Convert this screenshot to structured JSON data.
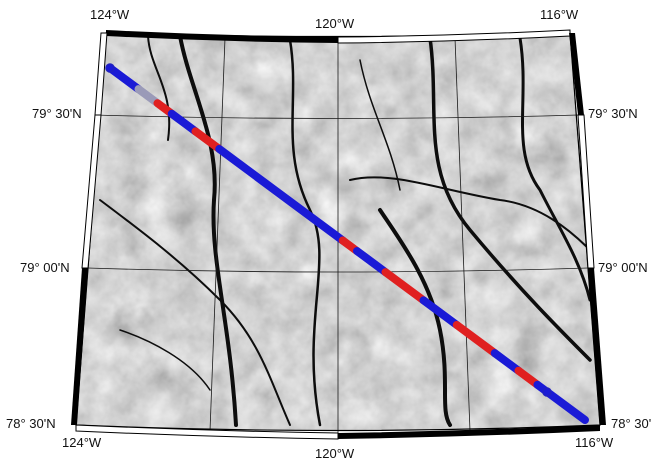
{
  "map": {
    "graticule": {
      "lon_labels": [
        "124°W",
        "120°W",
        "116°W"
      ],
      "lat_labels": [
        "79° 30'N",
        "79° 00'N",
        "78° 30'N"
      ],
      "lat_labels_right": [
        "79° 30'N",
        "79° 00'N",
        "78° 30'"
      ]
    },
    "colors": {
      "frame": "#000000",
      "gridline": "#1a1a1a",
      "track_primary": "#1a1ad6",
      "track_secondary": "#e02020",
      "background": "#ffffff"
    },
    "track": {
      "segments_along_track": [
        {
          "from": 0.0,
          "to": 0.06,
          "color": "blue"
        },
        {
          "from": 0.06,
          "to": 0.1,
          "color": "grey"
        },
        {
          "from": 0.1,
          "to": 0.13,
          "color": "red"
        },
        {
          "from": 0.13,
          "to": 0.18,
          "color": "blue"
        },
        {
          "from": 0.18,
          "to": 0.23,
          "color": "red"
        },
        {
          "from": 0.23,
          "to": 0.49,
          "color": "blue"
        },
        {
          "from": 0.49,
          "to": 0.52,
          "color": "red"
        },
        {
          "from": 0.52,
          "to": 0.58,
          "color": "blue"
        },
        {
          "from": 0.58,
          "to": 0.66,
          "color": "red"
        },
        {
          "from": 0.66,
          "to": 0.73,
          "color": "blue"
        },
        {
          "from": 0.73,
          "to": 0.81,
          "color": "red"
        },
        {
          "from": 0.81,
          "to": 0.86,
          "color": "blue"
        },
        {
          "from": 0.86,
          "to": 0.9,
          "color": "red"
        },
        {
          "from": 0.9,
          "to": 1.0,
          "color": "blue"
        }
      ]
    }
  }
}
